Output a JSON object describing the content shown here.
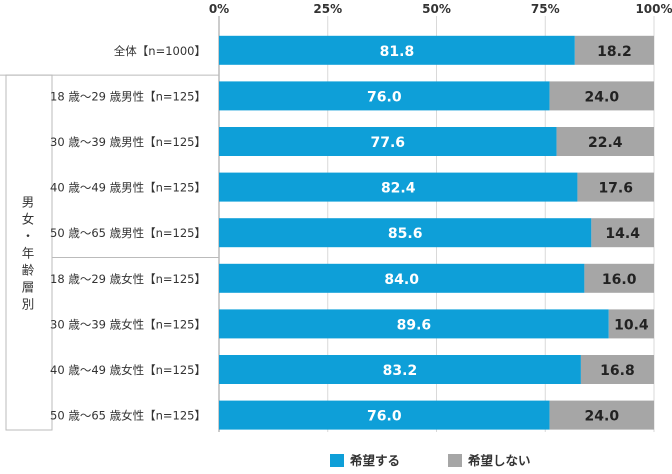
{
  "chart_data": {
    "type": "bar",
    "orientation": "horizontal",
    "stacked": true,
    "xlim": [
      0,
      100
    ],
    "ticks": [
      "0%",
      "25%",
      "50%",
      "75%",
      "100%"
    ],
    "tick_values": [
      0,
      25,
      50,
      75,
      100
    ],
    "categories": [
      "全体【n=1000】",
      "18 歳〜29 歳男性【n=125】",
      "30 歳〜39 歳男性【n=125】",
      "40 歳〜49 歳男性【n=125】",
      "50 歳〜65 歳男性【n=125】",
      "18 歳〜29 歳女性【n=125】",
      "30 歳〜39 歳女性【n=125】",
      "40 歳〜49 歳女性【n=125】",
      "50 歳〜65 歳女性【n=125】"
    ],
    "group_label": "男女・年齢層別",
    "series": [
      {
        "name": "希望する",
        "color": "#0e9fd8",
        "label_color": "#ffffff",
        "values": [
          81.8,
          76.0,
          77.6,
          82.4,
          85.6,
          84.0,
          89.6,
          83.2,
          76.0
        ]
      },
      {
        "name": "希望しない",
        "color": "#a6a6a6",
        "label_color": "#222222",
        "values": [
          18.2,
          24.0,
          22.4,
          17.6,
          14.4,
          16.0,
          10.4,
          16.8,
          24.0
        ]
      }
    ],
    "legend_position": "bottom"
  }
}
